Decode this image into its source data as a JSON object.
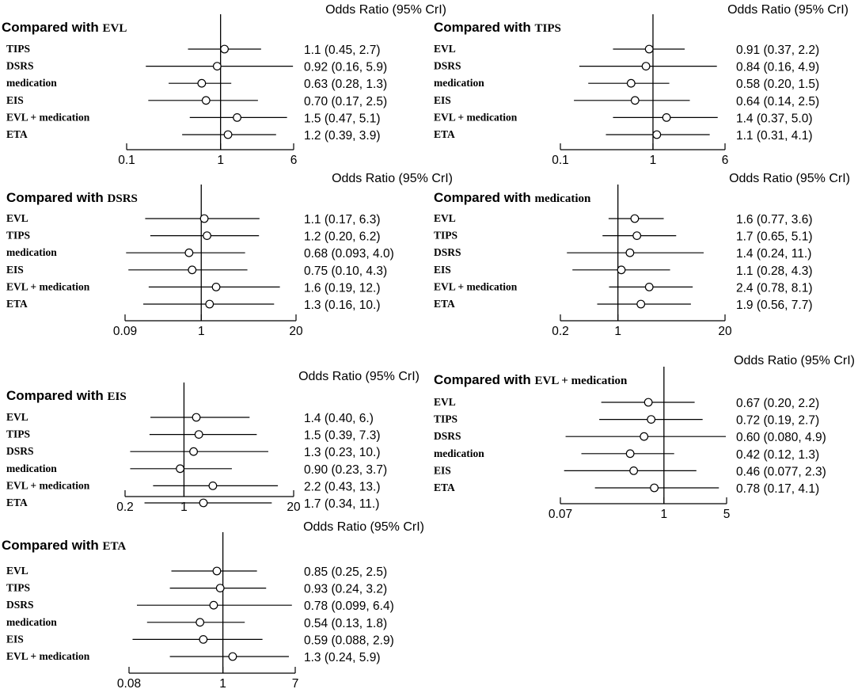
{
  "chart_data": [
    {
      "type": "forest",
      "panel_header": "Odds Ratio (95% CrI)",
      "title_prefix": "Compared with",
      "reference": "EVL",
      "x_scale": "log",
      "xlim": [
        0.1,
        6
      ],
      "x_ticks": [
        "0.1",
        "1",
        "6"
      ],
      "reference_line": 1,
      "rows": [
        {
          "label": "TIPS",
          "or": 1.1,
          "lo": 0.45,
          "hi": 2.7,
          "text": "1.1 (0.45, 2.7)"
        },
        {
          "label": "DSRS",
          "or": 0.92,
          "lo": 0.16,
          "hi": 5.9,
          "text": "0.92 (0.16, 5.9)"
        },
        {
          "label": "medication",
          "or": 0.63,
          "lo": 0.28,
          "hi": 1.3,
          "text": "0.63 (0.28, 1.3)"
        },
        {
          "label": "EIS",
          "or": 0.7,
          "lo": 0.17,
          "hi": 2.5,
          "text": "0.70 (0.17, 2.5)"
        },
        {
          "label": "EVL + medication",
          "or": 1.5,
          "lo": 0.47,
          "hi": 5.1,
          "text": "1.5 (0.47, 5.1)"
        },
        {
          "label": "ETA",
          "or": 1.2,
          "lo": 0.39,
          "hi": 3.9,
          "text": "1.2 (0.39, 3.9)"
        }
      ]
    },
    {
      "type": "forest",
      "panel_header": "Odds Ratio (95% CrI)",
      "title_prefix": "Compared with",
      "reference": "TIPS",
      "x_scale": "log",
      "xlim": [
        0.1,
        6
      ],
      "x_ticks": [
        "0.1",
        "1",
        "6"
      ],
      "reference_line": 1,
      "rows": [
        {
          "label": "EVL",
          "or": 0.91,
          "lo": 0.37,
          "hi": 2.2,
          "text": "0.91 (0.37, 2.2)"
        },
        {
          "label": "DSRS",
          "or": 0.84,
          "lo": 0.16,
          "hi": 4.9,
          "text": "0.84 (0.16, 4.9)"
        },
        {
          "label": "medication",
          "or": 0.58,
          "lo": 0.2,
          "hi": 1.5,
          "text": "0.58 (0.20, 1.5)"
        },
        {
          "label": "EIS",
          "or": 0.64,
          "lo": 0.14,
          "hi": 2.5,
          "text": "0.64 (0.14, 2.5)"
        },
        {
          "label": "EVL + medication",
          "or": 1.4,
          "lo": 0.37,
          "hi": 5.0,
          "text": "1.4 (0.37, 5.0)"
        },
        {
          "label": "ETA",
          "or": 1.1,
          "lo": 0.31,
          "hi": 4.1,
          "text": "1.1 (0.31, 4.1)"
        }
      ]
    },
    {
      "type": "forest",
      "panel_header": "Odds Ratio (95% CrI)",
      "title_prefix": "Compared with",
      "reference": "DSRS",
      "x_scale": "log",
      "xlim": [
        0.09,
        20
      ],
      "x_ticks": [
        "0.09",
        "1",
        "20"
      ],
      "reference_line": 1,
      "rows": [
        {
          "label": "EVL",
          "or": 1.1,
          "lo": 0.17,
          "hi": 6.3,
          "text": "1.1 (0.17, 6.3)"
        },
        {
          "label": "TIPS",
          "or": 1.2,
          "lo": 0.2,
          "hi": 6.2,
          "text": "1.2 (0.20, 6.2)"
        },
        {
          "label": "medication",
          "or": 0.68,
          "lo": 0.093,
          "hi": 4.0,
          "text": "0.68 (0.093, 4.0)"
        },
        {
          "label": "EIS",
          "or": 0.75,
          "lo": 0.1,
          "hi": 4.3,
          "text": "0.75 (0.10, 4.3)"
        },
        {
          "label": "EVL + medication",
          "or": 1.6,
          "lo": 0.19,
          "hi": 12.0,
          "text": "1.6 (0.19, 12.)"
        },
        {
          "label": "ETA",
          "or": 1.3,
          "lo": 0.16,
          "hi": 10.0,
          "text": "1.3 (0.16, 10.)"
        }
      ]
    },
    {
      "type": "forest",
      "panel_header": "Odds Ratio (95% CrI)",
      "title_prefix": "Compared with",
      "reference": "medication",
      "x_scale": "log",
      "xlim": [
        0.2,
        20
      ],
      "x_ticks": [
        "0.2",
        "1",
        "20"
      ],
      "reference_line": 1,
      "rows": [
        {
          "label": "EVL",
          "or": 1.6,
          "lo": 0.77,
          "hi": 3.6,
          "text": "1.6 (0.77, 3.6)"
        },
        {
          "label": "TIPS",
          "or": 1.7,
          "lo": 0.65,
          "hi": 5.1,
          "text": "1.7 (0.65, 5.1)"
        },
        {
          "label": "DSRS",
          "or": 1.4,
          "lo": 0.24,
          "hi": 11.0,
          "text": "1.4 (0.24,   11.)"
        },
        {
          "label": "EIS",
          "or": 1.1,
          "lo": 0.28,
          "hi": 4.3,
          "text": "1.1 (0.28, 4.3)"
        },
        {
          "label": "EVL + medication",
          "or": 2.4,
          "lo": 0.78,
          "hi": 8.1,
          "text": "2.4 (0.78, 8.1)"
        },
        {
          "label": "ETA",
          "or": 1.9,
          "lo": 0.56,
          "hi": 7.7,
          "text": "1.9 (0.56, 7.7)"
        }
      ]
    },
    {
      "type": "forest",
      "panel_header": "Odds Ratio (95% CrI)",
      "title_prefix": "Compared with",
      "reference": "EIS",
      "x_scale": "log",
      "xlim": [
        0.2,
        20
      ],
      "x_ticks": [
        "0.2",
        "1",
        "20"
      ],
      "reference_line": 1,
      "rows": [
        {
          "label": "EVL",
          "or": 1.4,
          "lo": 0.4,
          "hi": 6.0,
          "text": "1.4 (0.40, 6.)"
        },
        {
          "label": "TIPS",
          "or": 1.5,
          "lo": 0.39,
          "hi": 7.3,
          "text": "1.5 (0.39, 7.3)"
        },
        {
          "label": "DSRS",
          "or": 1.3,
          "lo": 0.23,
          "hi": 10.0,
          "text": "1.3 (0.23, 10.)"
        },
        {
          "label": "medication",
          "or": 0.9,
          "lo": 0.23,
          "hi": 3.7,
          "text": "0.90 (0.23, 3.7)"
        },
        {
          "label": "EVL + medication",
          "or": 2.2,
          "lo": 0.43,
          "hi": 13.0,
          "text": "2.2 (0.43, 13.)"
        },
        {
          "label": "ETA",
          "or": 1.7,
          "lo": 0.34,
          "hi": 11.0,
          "text": "1.7 (0.34,   11.)"
        }
      ]
    },
    {
      "type": "forest",
      "panel_header": "Odds Ratio (95% CrI)",
      "title_prefix": "Compared with",
      "reference": "EVL + medication",
      "x_scale": "log",
      "xlim": [
        0.07,
        5
      ],
      "x_ticks": [
        "0.07",
        "1",
        "5"
      ],
      "reference_line": 1,
      "rows": [
        {
          "label": "EVL",
          "or": 0.67,
          "lo": 0.2,
          "hi": 2.2,
          "text": "0.67 (0.20, 2.2)"
        },
        {
          "label": "TIPS",
          "or": 0.72,
          "lo": 0.19,
          "hi": 2.7,
          "text": "0.72 (0.19, 2.7)"
        },
        {
          "label": "DSRS",
          "or": 0.6,
          "lo": 0.08,
          "hi": 4.9,
          "text": "0.60 (0.080, 4.9)"
        },
        {
          "label": "medication",
          "or": 0.42,
          "lo": 0.12,
          "hi": 1.3,
          "text": "0.42 (0.12, 1.3)"
        },
        {
          "label": "EIS",
          "or": 0.46,
          "lo": 0.077,
          "hi": 2.3,
          "text": "0.46 (0.077, 2.3)"
        },
        {
          "label": "ETA",
          "or": 0.78,
          "lo": 0.17,
          "hi": 4.1,
          "text": "0.78 (0.17, 4.1)"
        }
      ]
    },
    {
      "type": "forest",
      "panel_header": "Odds Ratio (95% CrI)",
      "title_prefix": "Compared with",
      "reference": "ETA",
      "x_scale": "log",
      "xlim": [
        0.08,
        7
      ],
      "x_ticks": [
        "0.08",
        "1",
        "7"
      ],
      "reference_line": 1,
      "rows": [
        {
          "label": "EVL",
          "or": 0.85,
          "lo": 0.25,
          "hi": 2.5,
          "text": "0.85 (0.25, 2.5)"
        },
        {
          "label": "TIPS",
          "or": 0.93,
          "lo": 0.24,
          "hi": 3.2,
          "text": "0.93 (0.24, 3.2)"
        },
        {
          "label": "DSRS",
          "or": 0.78,
          "lo": 0.099,
          "hi": 6.4,
          "text": "0.78 (0.099, 6.4)"
        },
        {
          "label": "medication",
          "or": 0.54,
          "lo": 0.13,
          "hi": 1.8,
          "text": "0.54 (0.13, 1.8)"
        },
        {
          "label": "EIS",
          "or": 0.59,
          "lo": 0.088,
          "hi": 2.9,
          "text": "0.59 (0.088, 2.9)"
        },
        {
          "label": "EVL + medication",
          "or": 1.3,
          "lo": 0.24,
          "hi": 5.9,
          "text": "1.3 (0.24, 5.9)"
        }
      ]
    }
  ]
}
